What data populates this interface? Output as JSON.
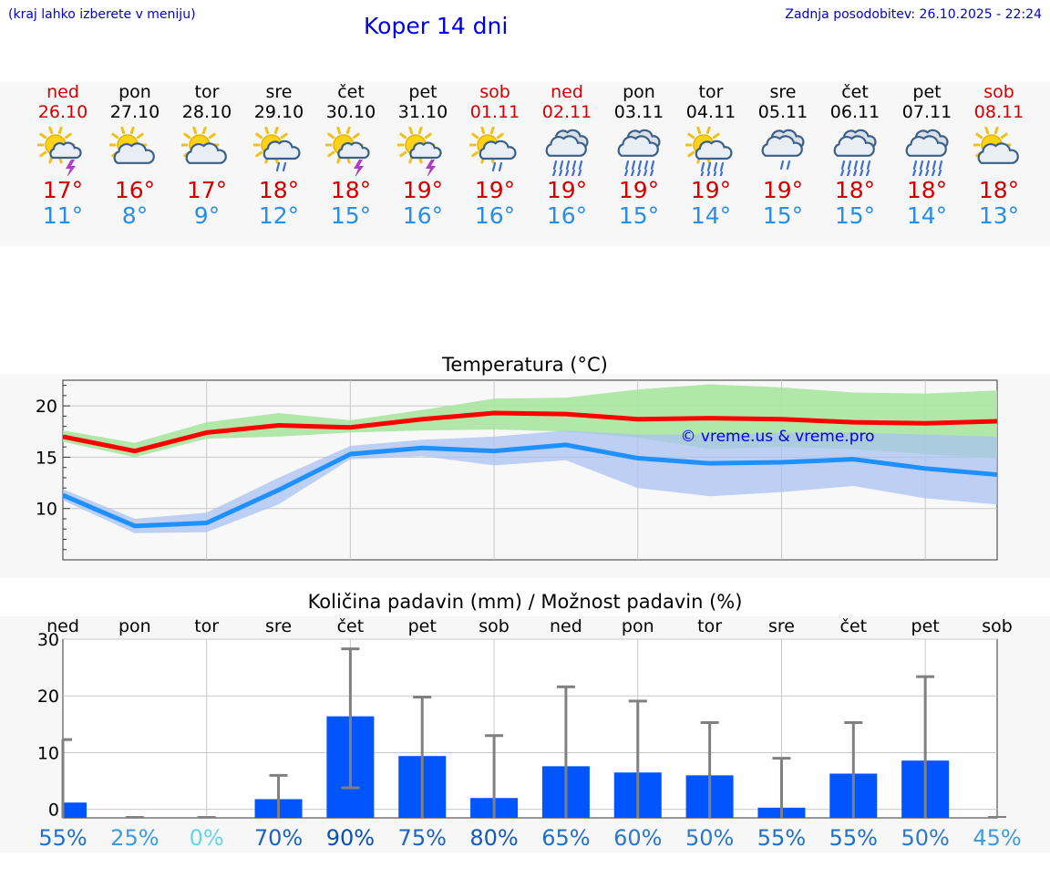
{
  "header": {
    "hint": "(kraj lahko izberete v meniju)",
    "title": "Koper 14 dni",
    "updated": "Zadnja posodobitev: 26.10.2025 - 22:24"
  },
  "days": [
    {
      "name": "ned",
      "date": "26.10",
      "weekend": true,
      "icon": "sun-cloud-thunder",
      "max": "17°",
      "min": "11°"
    },
    {
      "name": "pon",
      "date": "27.10",
      "weekend": false,
      "icon": "sun-cloud",
      "max": "16°",
      "min": "8°"
    },
    {
      "name": "tor",
      "date": "28.10",
      "weekend": false,
      "icon": "sun-cloud",
      "max": "17°",
      "min": "9°"
    },
    {
      "name": "sre",
      "date": "29.10",
      "weekend": false,
      "icon": "sun-cloud-rain",
      "max": "18°",
      "min": "12°"
    },
    {
      "name": "čet",
      "date": "30.10",
      "weekend": false,
      "icon": "sun-cloud-thunder",
      "max": "18°",
      "min": "15°"
    },
    {
      "name": "pet",
      "date": "31.10",
      "weekend": false,
      "icon": "sun-cloud-thunder",
      "max": "19°",
      "min": "16°"
    },
    {
      "name": "sob",
      "date": "01.11",
      "weekend": true,
      "icon": "sun-cloud-rain",
      "max": "19°",
      "min": "16°"
    },
    {
      "name": "ned",
      "date": "02.11",
      "weekend": true,
      "icon": "cloud-heavy-rain",
      "max": "19°",
      "min": "16°"
    },
    {
      "name": "pon",
      "date": "03.11",
      "weekend": false,
      "icon": "cloud-heavy-rain",
      "max": "19°",
      "min": "15°"
    },
    {
      "name": "tor",
      "date": "04.11",
      "weekend": false,
      "icon": "sun-cloud-heavy-rain",
      "max": "19°",
      "min": "14°"
    },
    {
      "name": "sre",
      "date": "05.11",
      "weekend": false,
      "icon": "cloud-rain",
      "max": "19°",
      "min": "15°"
    },
    {
      "name": "čet",
      "date": "06.11",
      "weekend": false,
      "icon": "cloud-heavy-rain",
      "max": "18°",
      "min": "15°"
    },
    {
      "name": "pet",
      "date": "07.11",
      "weekend": false,
      "icon": "cloud-heavy-rain",
      "max": "18°",
      "min": "14°"
    },
    {
      "name": "sob",
      "date": "08.11",
      "weekend": true,
      "icon": "sun-cloud",
      "max": "18°",
      "min": "13°"
    }
  ],
  "colors": {
    "max": "#d20000",
    "min": "#2a8ee6",
    "max_line": "#ff0000",
    "max_band": "#a8e4a0",
    "min_line": "#1e90ff",
    "min_band": "#a9c2f2",
    "bar": "#0055ff",
    "errbar": "#808080"
  },
  "chart_data": [
    {
      "type": "line",
      "title": "Temperatura (°C)",
      "watermark": "© vreme.us & vreme.pro",
      "ylim": [
        5,
        22.5
      ],
      "yticks": [
        10,
        15,
        20
      ],
      "grid": true,
      "series": [
        {
          "values": [
            17.0,
            15.6,
            17.4,
            18.1,
            17.9,
            18.7,
            19.3,
            19.2,
            18.7,
            18.8,
            18.7,
            18.4,
            18.3,
            18.5
          ],
          "band_low": [
            16.5,
            15.0,
            16.8,
            17.0,
            17.4,
            17.6,
            17.7,
            17.5,
            16.9,
            15.8,
            16.0,
            15.8,
            15.3,
            14.9
          ],
          "band_high": [
            17.6,
            16.4,
            18.4,
            19.3,
            18.6,
            19.6,
            20.7,
            20.8,
            21.6,
            22.1,
            21.8,
            21.3,
            21.2,
            21.5
          ]
        },
        {
          "values": [
            11.3,
            8.3,
            8.6,
            11.8,
            15.3,
            15.9,
            15.6,
            16.2,
            14.9,
            14.4,
            14.5,
            14.8,
            13.9,
            13.3
          ],
          "band_low": [
            10.8,
            7.6,
            7.7,
            10.4,
            14.8,
            15.1,
            14.2,
            14.7,
            12.0,
            11.2,
            11.6,
            12.2,
            11.0,
            10.4
          ],
          "band_high": [
            11.9,
            9.0,
            9.6,
            13.0,
            16.1,
            16.7,
            17.0,
            17.6,
            17.2,
            17.2,
            17.4,
            17.4,
            17.2,
            17.0
          ]
        }
      ]
    },
    {
      "type": "bar",
      "title": "Količina padavin (mm) / Možnost padavin (%)",
      "categories": [
        "ned",
        "pon",
        "tor",
        "sre",
        "čet",
        "pet",
        "sob",
        "ned",
        "pon",
        "tor",
        "sre",
        "čet",
        "pet",
        "sob"
      ],
      "ylim": [
        -1.5,
        30
      ],
      "yticks": [
        0,
        10,
        20,
        30
      ],
      "grid": true,
      "values": [
        1.2,
        0,
        0,
        1.8,
        16.4,
        9.4,
        2.0,
        7.6,
        6.5,
        6.0,
        0.3,
        6.3,
        8.6,
        0
      ],
      "err_low": [
        null,
        0,
        0,
        null,
        3.8,
        null,
        null,
        null,
        null,
        null,
        null,
        null,
        null,
        0
      ],
      "err_high": [
        12.3,
        0,
        0,
        6.0,
        28.3,
        19.8,
        13.0,
        21.6,
        19.1,
        15.3,
        9.0,
        15.3,
        23.4,
        0
      ],
      "probabilities": [
        "55%",
        "25%",
        "0%",
        "70%",
        "90%",
        "75%",
        "80%",
        "65%",
        "60%",
        "50%",
        "55%",
        "55%",
        "50%",
        "45%"
      ],
      "probability_colors": [
        "#1f6fc9",
        "#3d9be0",
        "#5fd6ea",
        "#1a64c2",
        "#0b4fb0",
        "#1a64c2",
        "#125ab8",
        "#1f6fc9",
        "#2a77cf",
        "#2a77cf",
        "#1f6fc9",
        "#1f6fc9",
        "#2a77cf",
        "#3d9be0"
      ]
    }
  ]
}
